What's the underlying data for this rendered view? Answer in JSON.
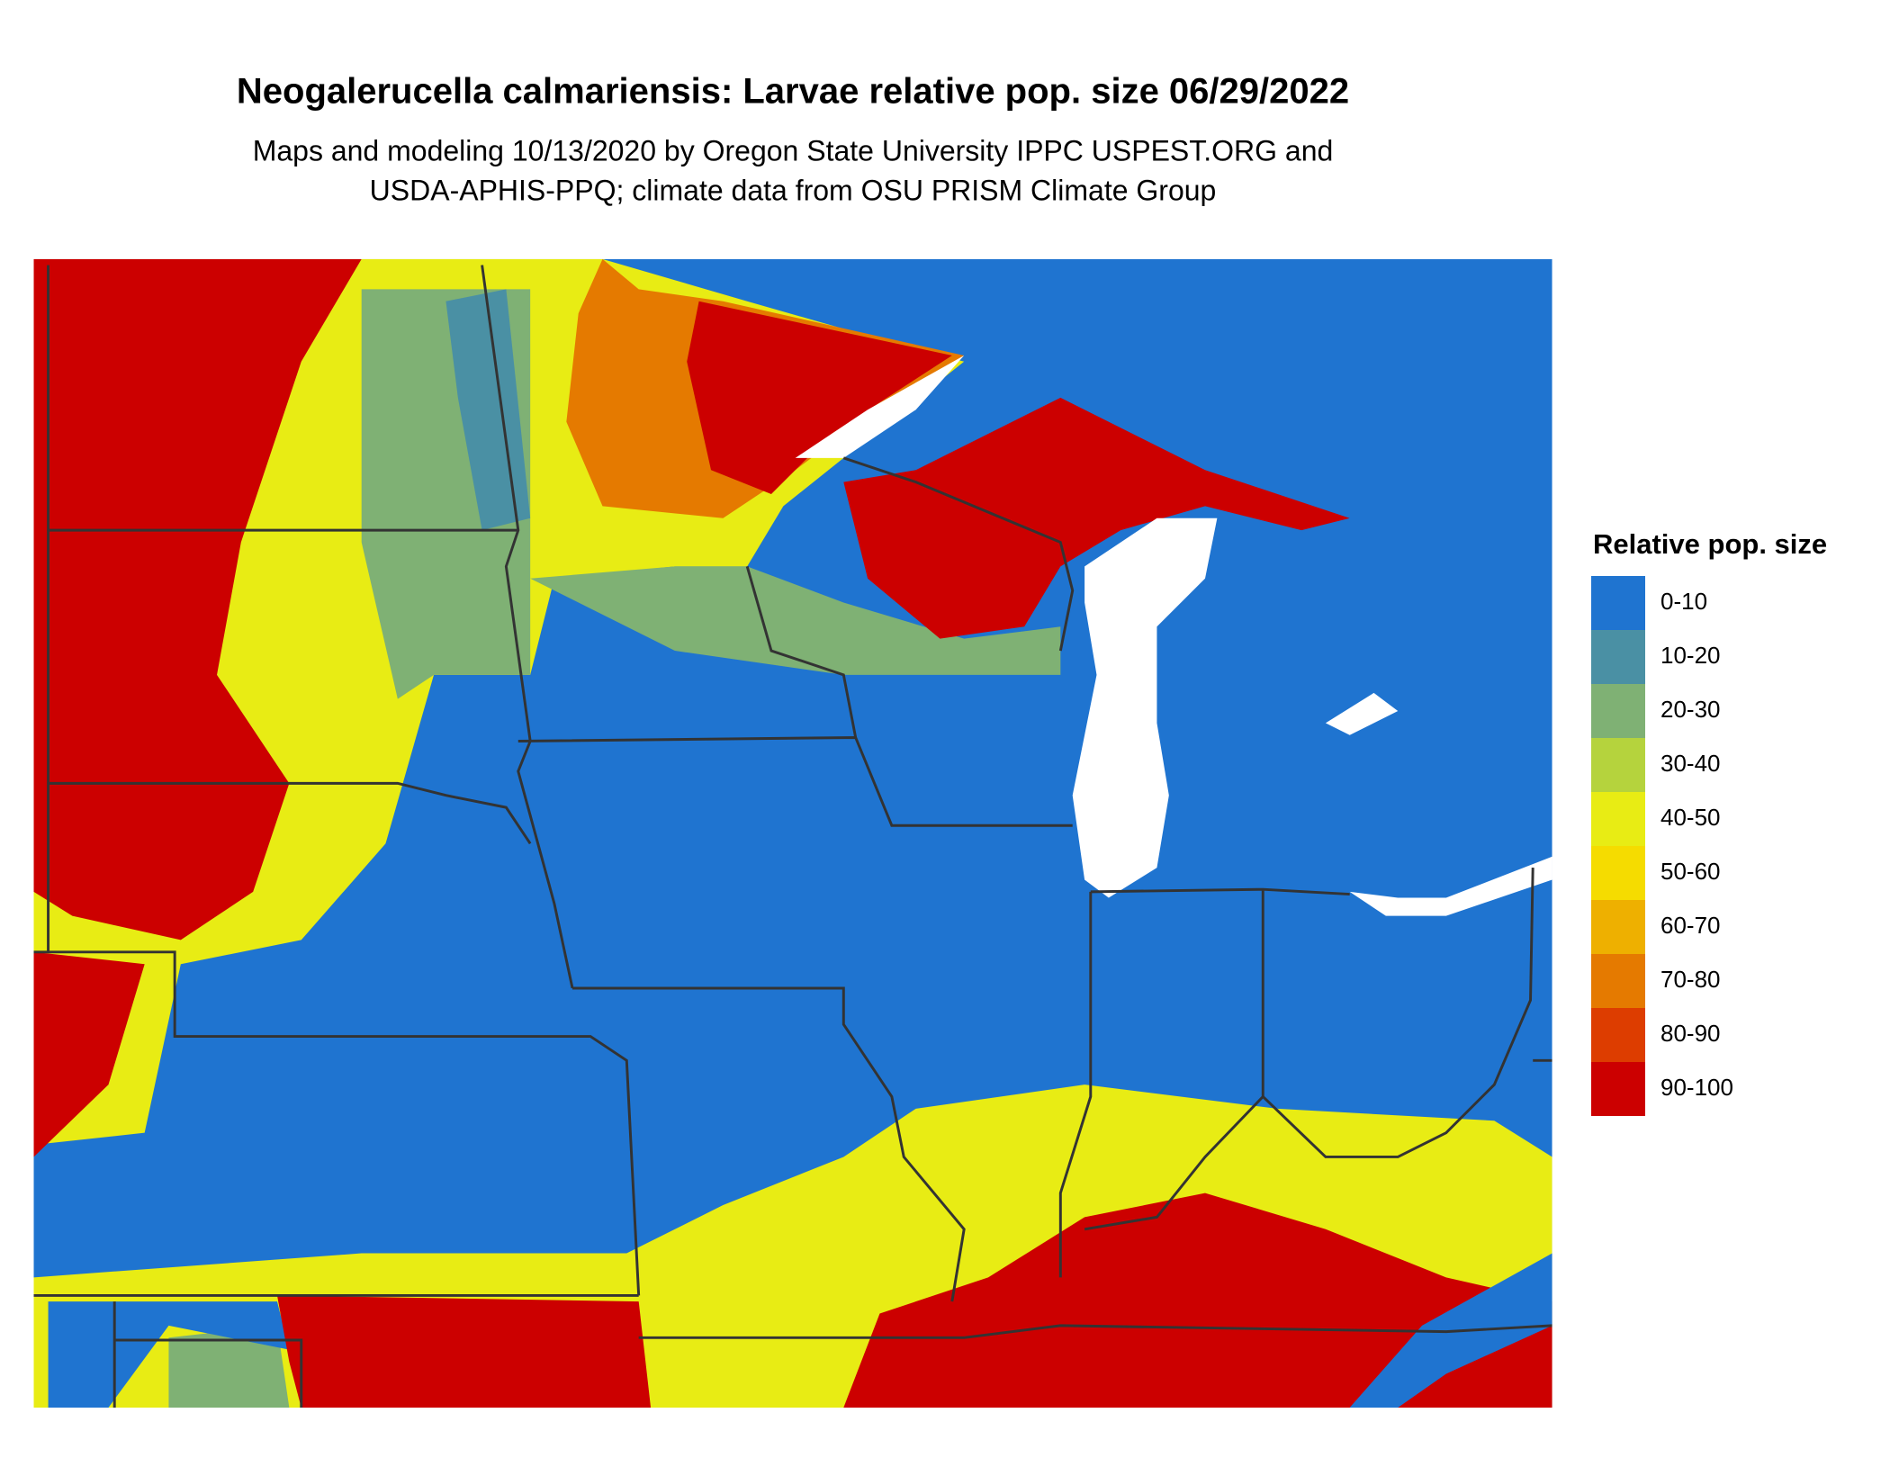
{
  "title": "Neogalerucella calmariensis: Larvae relative pop. size 06/29/2022",
  "subtitle": [
    "Maps and modeling 10/13/2020 by Oregon State University IPPC USPEST.ORG and",
    "USDA-APHIS-PPQ; climate data from OSU PRISM Climate Group"
  ],
  "legend": {
    "title": "Relative pop. size",
    "items": [
      {
        "label": "0-10",
        "color": "#1f74d0"
      },
      {
        "label": "10-20",
        "color": "#4a90a4"
      },
      {
        "label": "20-30",
        "color": "#7fb174"
      },
      {
        "label": "30-40",
        "color": "#b5d33d"
      },
      {
        "label": "40-50",
        "color": "#e8ec14"
      },
      {
        "label": "50-60",
        "color": "#f5dc00"
      },
      {
        "label": "60-70",
        "color": "#eeb000"
      },
      {
        "label": "70-80",
        "color": "#e57a00"
      },
      {
        "label": "80-90",
        "color": "#dd3d00"
      },
      {
        "label": "90-100",
        "color": "#cc0000"
      }
    ]
  }
}
